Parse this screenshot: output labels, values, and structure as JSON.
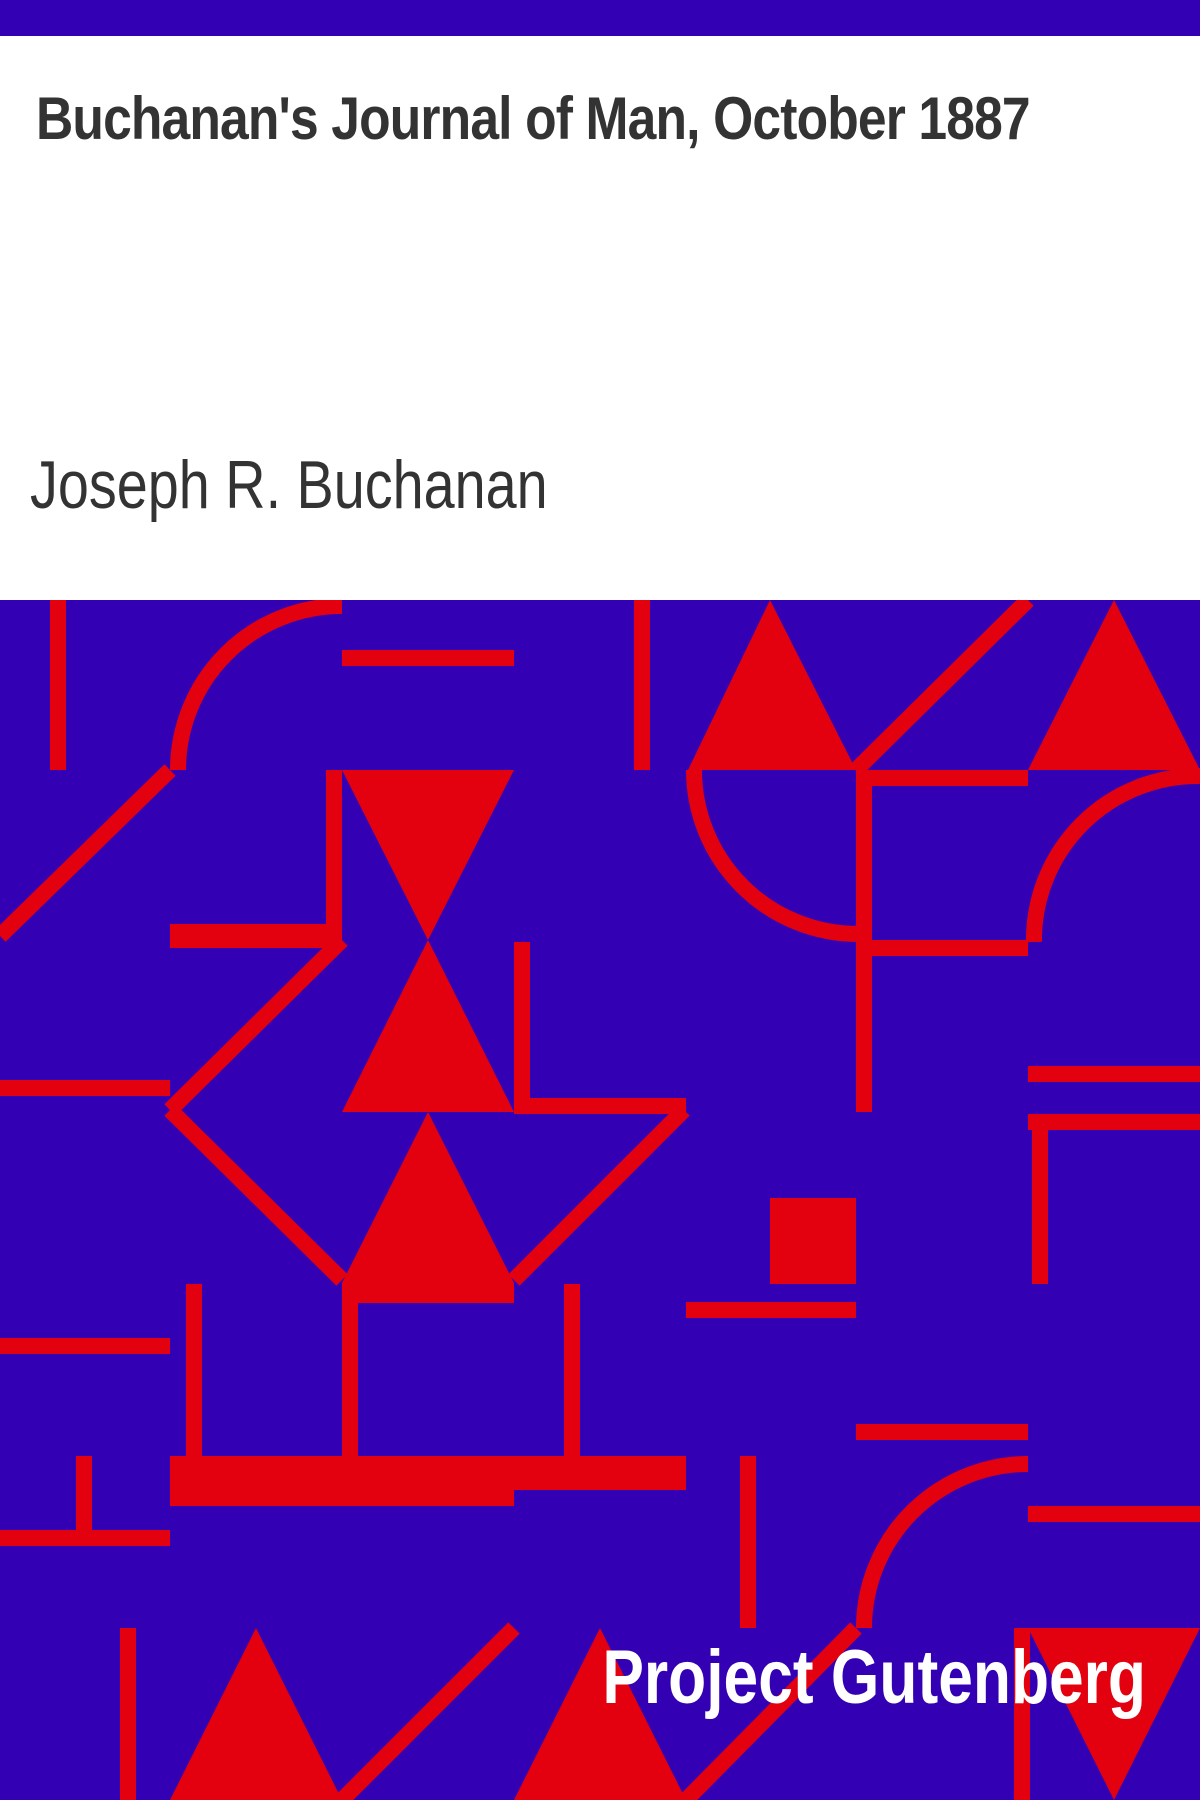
{
  "cover": {
    "title": "Buchanan's Journal of Man, October 1887",
    "author": "Joseph R. Buchanan",
    "publisher": "Project Gutenberg",
    "colors": {
      "background": "#3300b4",
      "pattern": "#e3000f",
      "title_panel": "#ffffff",
      "title_text": "#333333",
      "publisher_text": "#ffffff"
    },
    "pattern_description_icon": "geometric-pattern"
  }
}
